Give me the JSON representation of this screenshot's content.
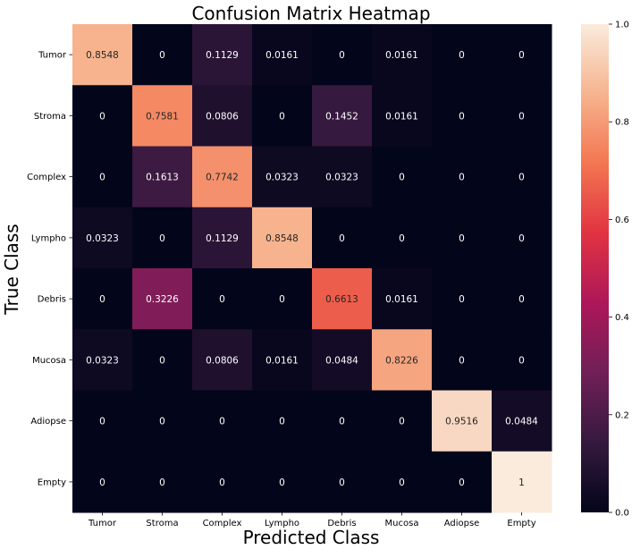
{
  "chart_data": {
    "type": "heatmap",
    "title": "Confusion Matrix Heatmap",
    "xlabel": "Predicted Class",
    "ylabel": "True Class",
    "x_categories": [
      "Tumor",
      "Stroma",
      "Complex",
      "Lympho",
      "Debris",
      "Mucosa",
      "Adiopse",
      "Empty"
    ],
    "y_categories": [
      "Tumor",
      "Stroma",
      "Complex",
      "Lympho",
      "Debris",
      "Mucosa",
      "Adiopse",
      "Empty"
    ],
    "values": [
      [
        0.8548,
        0,
        0.1129,
        0.0161,
        0,
        0.0161,
        0,
        0
      ],
      [
        0,
        0.7581,
        0.0806,
        0,
        0.1452,
        0.0161,
        0,
        0
      ],
      [
        0,
        0.1613,
        0.7742,
        0.0323,
        0.0323,
        0,
        0,
        0
      ],
      [
        0.0323,
        0,
        0.1129,
        0.8548,
        0,
        0,
        0,
        0
      ],
      [
        0,
        0.3226,
        0,
        0,
        0.6613,
        0.0161,
        0,
        0
      ],
      [
        0.0323,
        0,
        0.0806,
        0.0161,
        0.0484,
        0.8226,
        0,
        0
      ],
      [
        0,
        0,
        0,
        0,
        0,
        0,
        0.9516,
        0.0484
      ],
      [
        0,
        0,
        0,
        0,
        0,
        0,
        0,
        1
      ]
    ],
    "cell_labels": [
      [
        "0.8548",
        "0",
        "0.1129",
        "0.0161",
        "0",
        "0.0161",
        "0",
        "0"
      ],
      [
        "0",
        "0.7581",
        "0.0806",
        "0",
        "0.1452",
        "0.0161",
        "0",
        "0"
      ],
      [
        "0",
        "0.1613",
        "0.7742",
        "0.0323",
        "0.0323",
        "0",
        "0",
        "0"
      ],
      [
        "0.0323",
        "0",
        "0.1129",
        "0.8548",
        "0",
        "0",
        "0",
        "0"
      ],
      [
        "0",
        "0.3226",
        "0",
        "0",
        "0.6613",
        "0.0161",
        "0",
        "0"
      ],
      [
        "0.0323",
        "0",
        "0.0806",
        "0.0161",
        "0.0484",
        "0.8226",
        "0",
        "0"
      ],
      [
        "0",
        "0",
        "0",
        "0",
        "0",
        "0",
        "0.9516",
        "0.0484"
      ],
      [
        "0",
        "0",
        "0",
        "0",
        "0",
        "0",
        "0",
        "1"
      ]
    ],
    "colorbar": {
      "range": [
        0,
        1
      ],
      "ticks": [
        0.0,
        0.2,
        0.4,
        0.6,
        0.8,
        1.0
      ],
      "tick_labels": [
        "0.0",
        "0.2",
        "0.4",
        "0.6",
        "0.8",
        "1.0"
      ],
      "colormap": "rocket",
      "stops": [
        "#03051a",
        "#35193e",
        "#701f57",
        "#ad1759",
        "#e13342",
        "#f37651",
        "#f6b48f",
        "#faebdd"
      ]
    },
    "grid": false,
    "legend": "colorbar-right"
  }
}
